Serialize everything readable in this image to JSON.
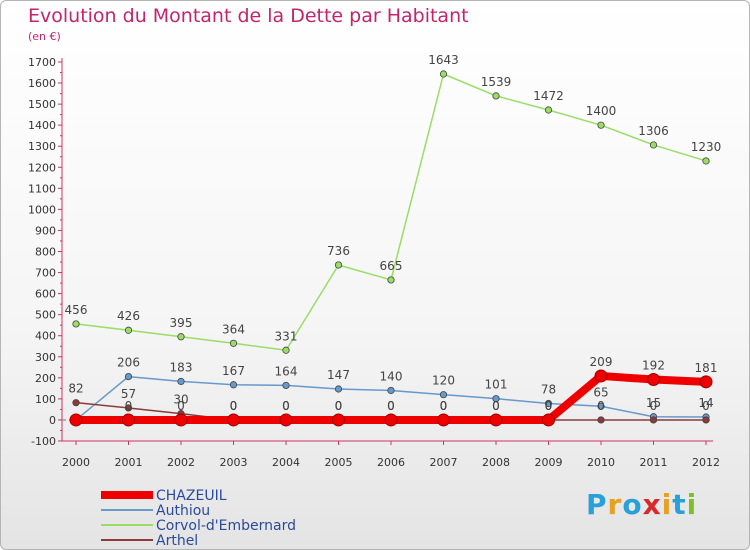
{
  "title": "Evolution du Montant de la Dette par Habitant",
  "unit": "(en €)",
  "logo": {
    "text": "Proxiti",
    "letter_colors": [
      "#2aa0d8",
      "#e8a020",
      "#2aa0d8",
      "#d82a2a",
      "#e8a020",
      "#2aa0d8",
      "#7fbf2a"
    ]
  },
  "chart_data": {
    "type": "line",
    "x": [
      "2000",
      "2001",
      "2002",
      "2003",
      "2004",
      "2005",
      "2006",
      "2007",
      "2008",
      "2009",
      "2010",
      "2011",
      "2012"
    ],
    "ylim": [
      -100,
      1700
    ],
    "yticks": [
      -100,
      0,
      100,
      200,
      300,
      400,
      500,
      600,
      700,
      800,
      900,
      1000,
      1100,
      1200,
      1300,
      1400,
      1500,
      1600,
      1700
    ],
    "grid": false,
    "legend_position": "bottom-left",
    "series": [
      {
        "name": "Corvol-d'Embernard",
        "color": "#99dd66",
        "values": [
          456,
          426,
          395,
          364,
          331,
          736,
          665,
          1643,
          1539,
          1472,
          1400,
          1306,
          1230
        ],
        "labels": [
          "456",
          "426",
          "395",
          "364",
          "331",
          "736",
          "665",
          "1643",
          "1539",
          "1472",
          "1400",
          "1306",
          "1230"
        ]
      },
      {
        "name": "Authiou",
        "color": "#6699cc",
        "values": [
          0,
          206,
          183,
          167,
          164,
          147,
          140,
          120,
          101,
          78,
          65,
          15,
          14
        ],
        "labels": [
          "",
          "206",
          "183",
          "167",
          "164",
          "147",
          "140",
          "120",
          "101",
          "78",
          "65",
          "15",
          "14"
        ]
      },
      {
        "name": "Arthel",
        "color": "#8b3a3a",
        "values": [
          82,
          57,
          30,
          0,
          0,
          0,
          0,
          0,
          0,
          0,
          0,
          0,
          0
        ],
        "labels": [
          "82",
          "57",
          "30",
          "0",
          "0",
          "0",
          "0",
          "0",
          "0",
          "0",
          "0",
          "0",
          "0"
        ]
      },
      {
        "name": "CHAZEUIL",
        "color": "#ee0000",
        "values": [
          0,
          0,
          0,
          0,
          0,
          0,
          0,
          0,
          0,
          0,
          209,
          192,
          181
        ],
        "labels": [
          "",
          "0",
          "0",
          "0",
          "0",
          "0",
          "0",
          "0",
          "0",
          "0",
          "209",
          "192",
          "181"
        ]
      }
    ],
    "legend": [
      "CHAZEUIL",
      "Authiou",
      "Corvol-d'Embernard",
      "Arthel"
    ]
  }
}
